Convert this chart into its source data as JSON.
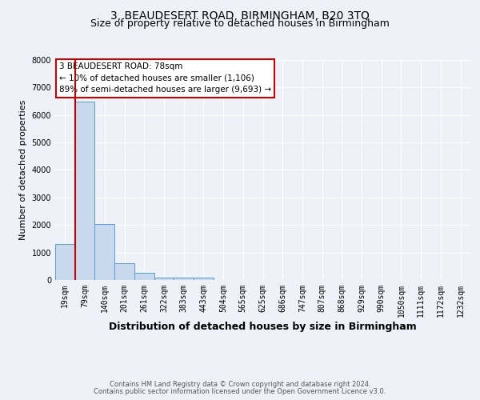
{
  "title": "3, BEAUDESERT ROAD, BIRMINGHAM, B20 3TQ",
  "subtitle": "Size of property relative to detached houses in Birmingham",
  "xlabel": "Distribution of detached houses by size in Birmingham",
  "ylabel": "Number of detached properties",
  "bin_labels": [
    "19sqm",
    "79sqm",
    "140sqm",
    "201sqm",
    "261sqm",
    "322sqm",
    "383sqm",
    "443sqm",
    "504sqm",
    "565sqm",
    "625sqm",
    "686sqm",
    "747sqm",
    "807sqm",
    "868sqm",
    "929sqm",
    "990sqm",
    "1050sqm",
    "1111sqm",
    "1172sqm",
    "1232sqm"
  ],
  "bar_values": [
    1300,
    6500,
    2050,
    620,
    270,
    100,
    75,
    75,
    0,
    0,
    0,
    0,
    0,
    0,
    0,
    0,
    0,
    0,
    0,
    0,
    0
  ],
  "bar_color": "#c8d9ed",
  "bar_edge_color": "#5b9bd5",
  "vline_x": 1.0,
  "vline_color": "#cc0000",
  "ylim": [
    0,
    8000
  ],
  "yticks": [
    0,
    1000,
    2000,
    3000,
    4000,
    5000,
    6000,
    7000,
    8000
  ],
  "annotation_text": "3 BEAUDESERT ROAD: 78sqm\n← 10% of detached houses are smaller (1,106)\n89% of semi-detached houses are larger (9,693) →",
  "annotation_box_color": "#ffffff",
  "annotation_box_edge": "#cc0000",
  "footer_line1": "Contains HM Land Registry data © Crown copyright and database right 2024.",
  "footer_line2": "Contains public sector information licensed under the Open Government Licence v3.0.",
  "background_color": "#eef2f8",
  "plot_background": "#eef2f8",
  "title_fontsize": 10,
  "subtitle_fontsize": 9,
  "tick_fontsize": 7,
  "ylabel_fontsize": 8,
  "xlabel_fontsize": 9,
  "footer_fontsize": 6,
  "annot_fontsize": 7.5
}
